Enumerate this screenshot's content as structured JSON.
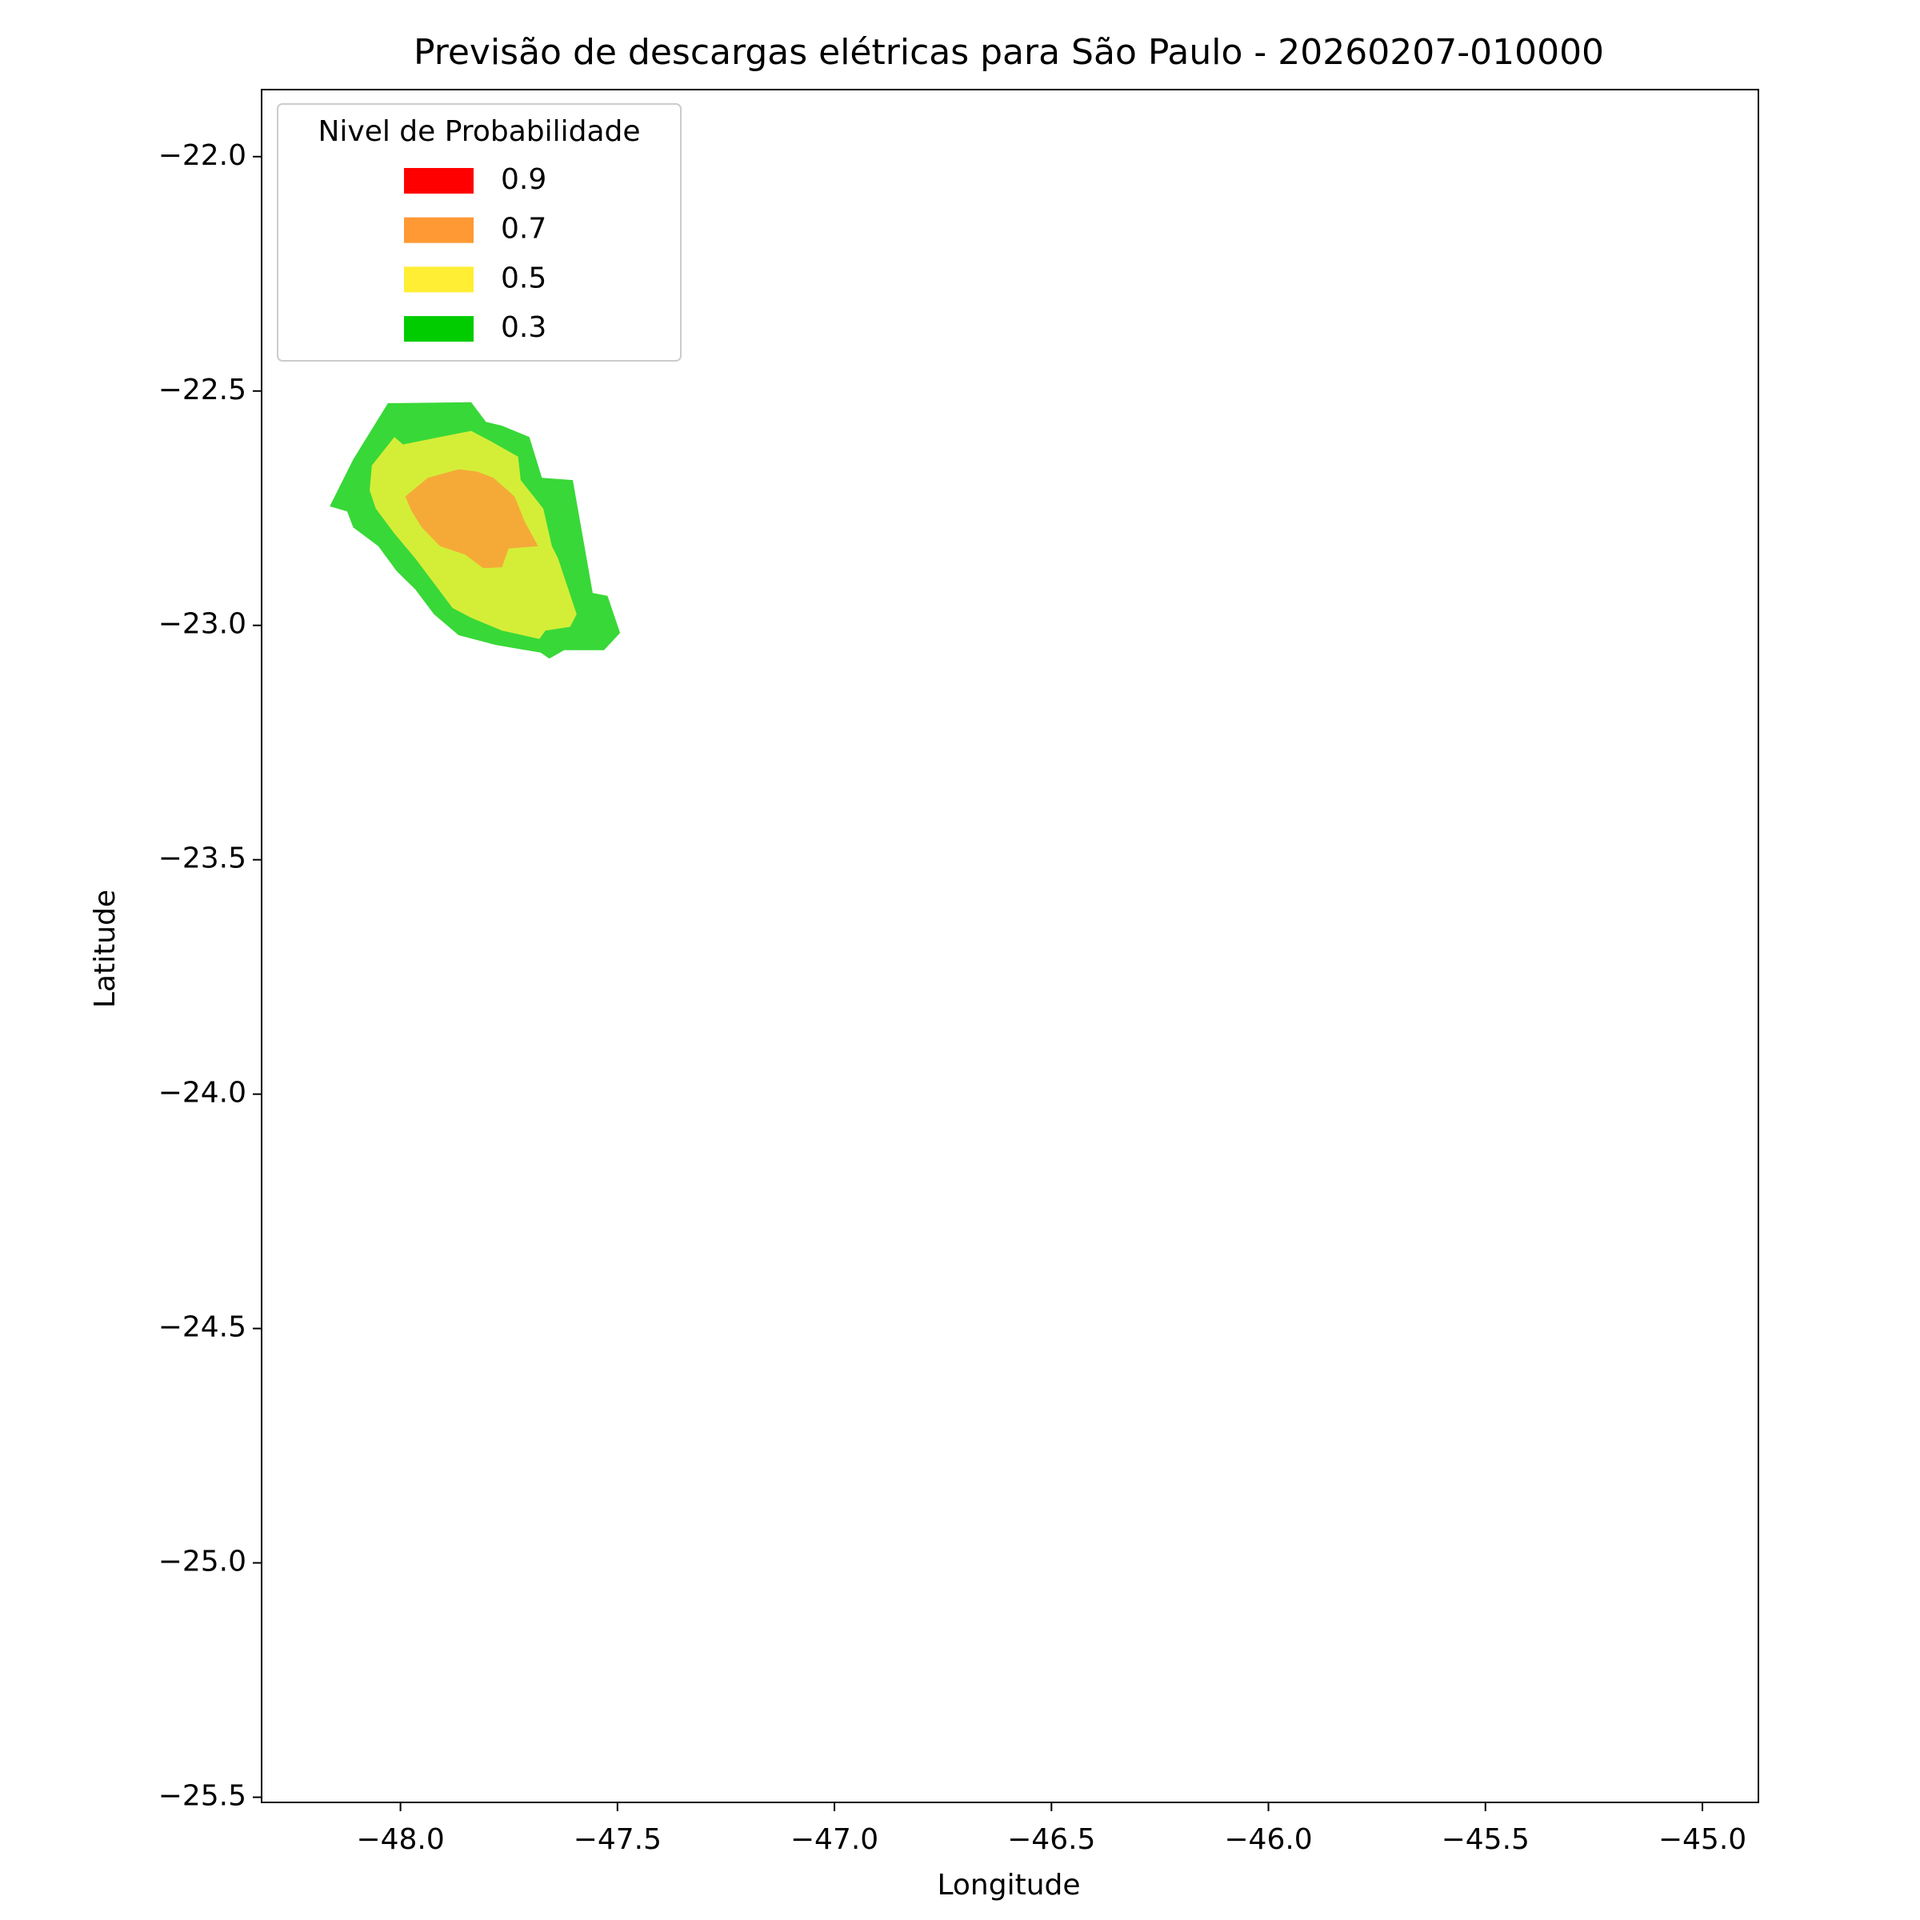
{
  "chart_data": {
    "type": "contour",
    "title": "Previsão de descargas elétricas para São Paulo - 20260207-010000",
    "x_label": "Longitude",
    "y_label": "Latitude",
    "xlim": [
      -48.32,
      -44.871
    ],
    "ylim": [
      -25.511,
      -21.857
    ],
    "xticks": [
      {
        "value": -48,
        "label": "−48.0"
      },
      {
        "value": -47.5,
        "label": "−47.5"
      },
      {
        "value": -47,
        "label": "−47.0"
      },
      {
        "value": -46.5,
        "label": "−46.5"
      },
      {
        "value": -46,
        "label": "−46.0"
      },
      {
        "value": -45.5,
        "label": "−45.5"
      },
      {
        "value": -45,
        "label": "−45.0"
      }
    ],
    "yticks": [
      {
        "value": -22,
        "label": "−22.0"
      },
      {
        "value": -22.5,
        "label": "−22.5"
      },
      {
        "value": -23,
        "label": "−23.0"
      },
      {
        "value": -23.5,
        "label": "−23.5"
      },
      {
        "value": -24,
        "label": "−24.0"
      },
      {
        "value": -24.5,
        "label": "−24.5"
      },
      {
        "value": -25,
        "label": "−25.0"
      },
      {
        "value": -25.5,
        "label": "−25.5"
      }
    ],
    "grid": false,
    "legend": {
      "position": "upper-left",
      "title": "Nivel de Probabilidade",
      "entries": [
        {
          "name": 0.9,
          "color": "#ff0000"
        },
        {
          "name": 0.7,
          "color": "#ff9933"
        },
        {
          "name": 0.5,
          "color": "#ffee33"
        },
        {
          "name": 0.3,
          "color": "#00cc00"
        }
      ]
    },
    "regions": [
      {
        "color": "#38d838",
        "lon": [
          -48.163,
          -48.109,
          -48.029,
          -47.837,
          -47.803,
          -47.766,
          -47.703,
          -47.674,
          -47.603,
          -47.557,
          -47.523,
          -47.494,
          -47.531,
          -47.623,
          -47.657,
          -47.677,
          -47.78,
          -47.866,
          -47.923,
          -47.966,
          -48.009,
          -48.051,
          -48.109,
          -48.123
        ],
        "lat": [
          -22.746,
          -22.646,
          -22.526,
          -22.524,
          -22.566,
          -22.574,
          -22.598,
          -22.685,
          -22.69,
          -22.931,
          -22.937,
          -23.016,
          -23.053,
          -23.053,
          -23.071,
          -23.058,
          -23.042,
          -23.021,
          -22.976,
          -22.923,
          -22.884,
          -22.831,
          -22.791,
          -22.757
        ]
      },
      {
        "color": "#d4ee38",
        "lon": [
          -48.066,
          -48.014,
          -47.994,
          -47.909,
          -47.837,
          -47.794,
          -47.729,
          -47.723,
          -47.671,
          -47.651,
          -47.637,
          -47.594,
          -47.609,
          -47.666,
          -47.68,
          -47.766,
          -47.837,
          -47.88,
          -47.923,
          -47.966,
          -48.014,
          -48.057,
          -48.071
        ],
        "lat": [
          -22.659,
          -22.598,
          -22.614,
          -22.598,
          -22.585,
          -22.606,
          -22.64,
          -22.69,
          -22.751,
          -22.831,
          -22.857,
          -22.976,
          -23.003,
          -23.011,
          -23.029,
          -23.011,
          -22.984,
          -22.963,
          -22.91,
          -22.857,
          -22.804,
          -22.751,
          -22.712
        ]
      },
      {
        "color": "#f5aa38",
        "lon": [
          -47.989,
          -47.937,
          -47.866,
          -47.823,
          -47.786,
          -47.737,
          -47.714,
          -47.683,
          -47.751,
          -47.766,
          -47.809,
          -47.851,
          -47.909,
          -47.951,
          -47.974
        ],
        "lat": [
          -22.725,
          -22.685,
          -22.667,
          -22.672,
          -22.685,
          -22.725,
          -22.778,
          -22.831,
          -22.836,
          -22.876,
          -22.878,
          -22.849,
          -22.831,
          -22.791,
          -22.757
        ]
      }
    ]
  }
}
